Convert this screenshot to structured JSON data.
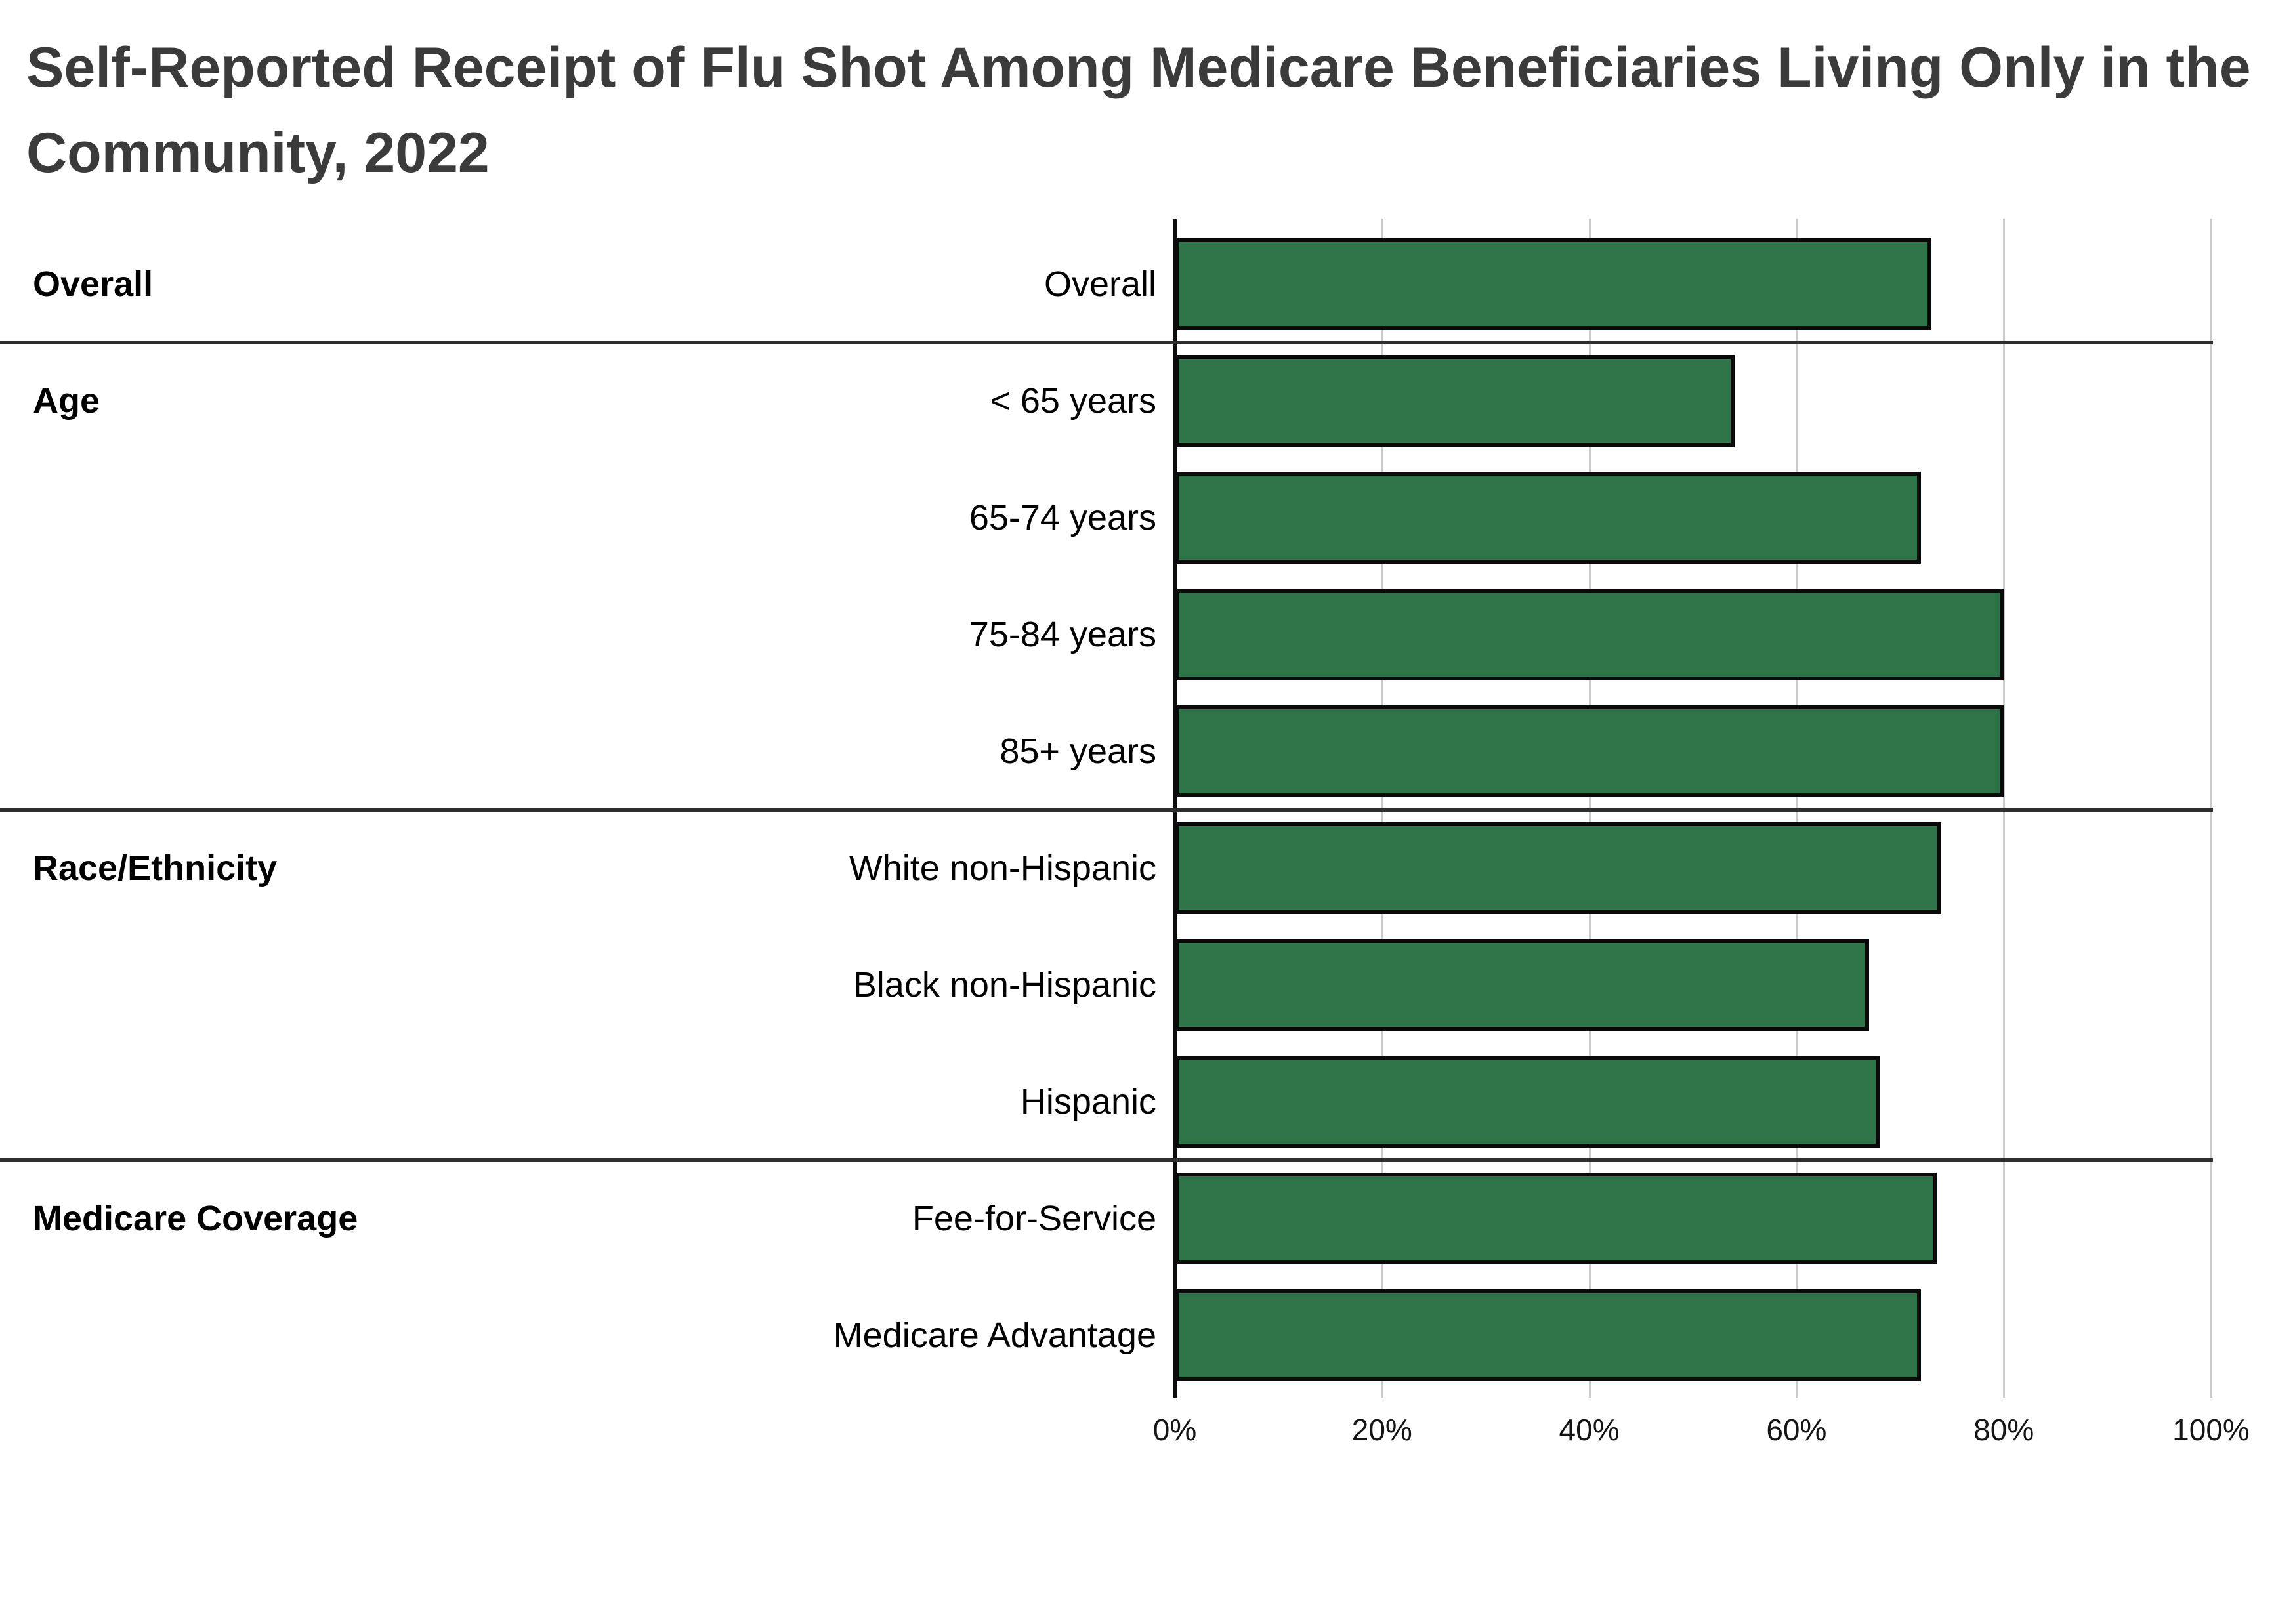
{
  "title": {
    "line1": "Self-Reported Receipt of Flu Shot Among Medicare Beneficiaries Living Only in the",
    "line2": "Community, 2022"
  },
  "chart_data": {
    "type": "bar",
    "orientation": "horizontal",
    "title": "Self-Reported Receipt of Flu Shot Among Medicare Beneficiaries Living Only in the Community, 2022",
    "xlabel": "",
    "ylabel": "",
    "unit": "percent",
    "xlim": [
      0,
      100
    ],
    "grid": true,
    "legend_position": "none",
    "x_ticks": [
      "0%",
      "20%",
      "40%",
      "60%",
      "80%",
      "100%"
    ],
    "x_tick_values": [
      0,
      20,
      40,
      60,
      80,
      100
    ],
    "groups": [
      {
        "label": "Overall",
        "rows": [
          {
            "label": "Overall",
            "value": 73
          }
        ]
      },
      {
        "label": "Age",
        "rows": [
          {
            "label": "< 65 years",
            "value": 54
          },
          {
            "label": "65-74 years",
            "value": 72
          },
          {
            "label": "75-84 years",
            "value": 80
          },
          {
            "label": "85+ years",
            "value": 80
          }
        ]
      },
      {
        "label": "Race/Ethnicity",
        "rows": [
          {
            "label": "White non-Hispanic",
            "value": 74
          },
          {
            "label": "Black non-Hispanic",
            "value": 67
          },
          {
            "label": "Hispanic",
            "value": 68
          }
        ]
      },
      {
        "label": "Medicare Coverage",
        "rows": [
          {
            "label": "Fee-for-Service",
            "value": 73.5
          },
          {
            "label": "Medicare Advantage",
            "value": 72
          }
        ]
      }
    ],
    "colors": {
      "bar_fill": "#2f7348",
      "bar_border": "#0a0a0a",
      "grid_line": "#cbcbcb",
      "axis_line": "#0d0d0d",
      "separator": "#2e2e2e",
      "title_text": "#3b3b3b",
      "label_text": "#000000",
      "tick_text": "#141414"
    }
  }
}
